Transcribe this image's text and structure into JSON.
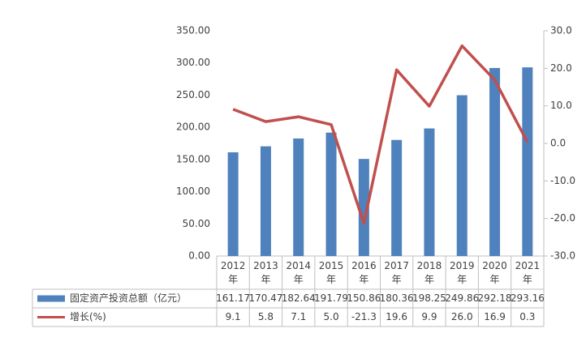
{
  "chart_data": {
    "type": "bar",
    "categories": [
      "2012年",
      "2013年",
      "2014年",
      "2015年",
      "2016年",
      "2017年",
      "2018年",
      "2019年",
      "2020年",
      "2021年"
    ],
    "series": [
      {
        "name": "固定资产投资总额（亿元）",
        "type": "bar",
        "color": "#4f81bd",
        "values": [
          161.17,
          170.47,
          182.64,
          191.79,
          150.86,
          180.36,
          198.25,
          249.86,
          292.18,
          293.16
        ]
      },
      {
        "name": "增长(%)",
        "type": "line",
        "axis": "y2",
        "color": "#c0504d",
        "values": [
          9.1,
          5.8,
          7.1,
          5.0,
          -21.3,
          19.6,
          9.9,
          26.0,
          16.9,
          0.3
        ],
        "value_labels": [
          "9.1",
          "5.8",
          "7.1",
          "5.0",
          "-21.3",
          "19.6",
          "9.9",
          "26.0",
          "16.9",
          "0.3"
        ]
      }
    ],
    "ylim": [
      0,
      350
    ],
    "yticks": [
      {
        "value": 0,
        "label": "0.00"
      },
      {
        "value": 50,
        "label": "50.00"
      },
      {
        "value": 100,
        "label": "100.00"
      },
      {
        "value": 150,
        "label": "150.00"
      },
      {
        "value": 200,
        "label": "200.00"
      },
      {
        "value": 250,
        "label": "250.00"
      },
      {
        "value": 300,
        "label": "300.00"
      },
      {
        "value": 350,
        "label": "350.00"
      }
    ],
    "y2lim": [
      -30,
      30
    ],
    "y2ticks": [
      {
        "value": -30,
        "label": "-30.0"
      },
      {
        "value": -20,
        "label": "-20.0"
      },
      {
        "value": -10,
        "label": "-10.0"
      },
      {
        "value": 0,
        "label": "0.0"
      },
      {
        "value": 10,
        "label": "10.0"
      },
      {
        "value": 20,
        "label": "20.0"
      },
      {
        "value": 30,
        "label": "30.0"
      }
    ],
    "data_table": true,
    "grid": false
  }
}
